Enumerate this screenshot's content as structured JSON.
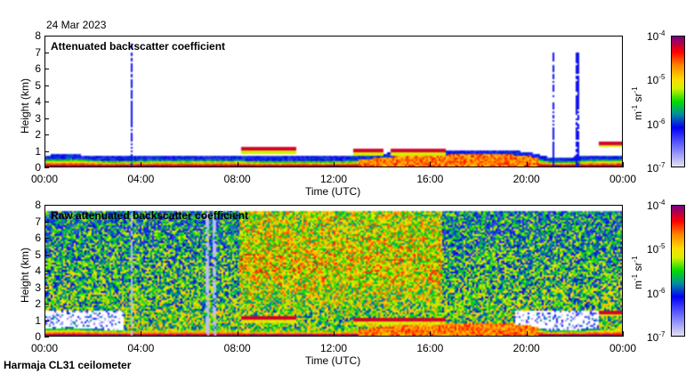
{
  "header": {
    "date": "24 Mar 2023"
  },
  "footer": {
    "station": "Harmaja CL31 ceilometer"
  },
  "chart_data": [
    {
      "type": "heatmap",
      "title": "Attenuated backscatter coefficient",
      "xlabel": "Time (UTC)",
      "ylabel": "Height (km)",
      "xlim": [
        0,
        24
      ],
      "ylim": [
        0,
        8
      ],
      "xticks": [
        "00:00",
        "04:00",
        "08:00",
        "12:00",
        "16:00",
        "20:00",
        "00:00"
      ],
      "yticks": [
        "0",
        "1",
        "2",
        "3",
        "4",
        "5",
        "6",
        "7",
        "8"
      ],
      "colorbar": {
        "label_base": "m",
        "label_exp1": "-1",
        "label_mid": " sr",
        "label_exp2": "-1",
        "scale": "log",
        "range": [
          1e-07,
          0.0001
        ],
        "ticks": [
          {
            "base": "10",
            "exp": "-4"
          },
          {
            "base": "10",
            "exp": "-5"
          },
          {
            "base": "10",
            "exp": "-6"
          },
          {
            "base": "10",
            "exp": "-7"
          }
        ]
      },
      "layer_top_km_hourly": [
        0.4,
        0.45,
        0.35,
        0.3,
        0.35,
        0.35,
        0.35,
        0.35,
        0.35,
        0.3,
        0.3,
        0.3,
        0.3,
        0.35,
        0.5,
        0.6,
        0.55,
        0.7,
        0.7,
        0.7,
        0.6,
        0.25,
        0.3,
        0.4,
        0.4
      ],
      "clouds": [
        {
          "t0": 8.1,
          "t1": 10.4,
          "h": 1.0
        },
        {
          "t0": 23.0,
          "t1": 24.0,
          "h": 1.4
        },
        {
          "t0": 12.8,
          "t1": 14.0,
          "h": 0.9
        },
        {
          "t0": 14.3,
          "t1": 16.6,
          "h": 0.9
        }
      ],
      "precip_columns": [
        {
          "t": 3.55,
          "top": 7.5
        },
        {
          "t": 21.1,
          "top": 7.0
        },
        {
          "t": 22.1,
          "top": 7.0
        }
      ],
      "noise": false
    },
    {
      "type": "heatmap",
      "title": "Raw attenuated backscatter coefficient",
      "xlabel": "Time (UTC)",
      "ylabel": "Height (km)",
      "xlim": [
        0,
        24
      ],
      "ylim": [
        0,
        8
      ],
      "xticks": [
        "00:00",
        "04:00",
        "08:00",
        "12:00",
        "16:00",
        "20:00",
        "00:00"
      ],
      "yticks": [
        "0",
        "1",
        "2",
        "3",
        "4",
        "5",
        "6",
        "7",
        "8"
      ],
      "colorbar": {
        "label_base": "m",
        "label_exp1": "-1",
        "label_mid": " sr",
        "label_exp2": "-1",
        "scale": "log",
        "range": [
          1e-07,
          0.0001
        ],
        "ticks": [
          {
            "base": "10",
            "exp": "-4"
          },
          {
            "base": "10",
            "exp": "-5"
          },
          {
            "base": "10",
            "exp": "-6"
          },
          {
            "base": "10",
            "exp": "-7"
          }
        ]
      },
      "layer_top_km_hourly": [
        0.4,
        0.45,
        0.35,
        0.3,
        0.35,
        0.35,
        0.35,
        0.35,
        0.35,
        0.3,
        0.3,
        0.3,
        0.3,
        0.35,
        0.5,
        0.6,
        0.55,
        0.7,
        0.7,
        0.7,
        0.6,
        0.25,
        0.3,
        0.4,
        0.4
      ],
      "clouds": [
        {
          "t0": 8.1,
          "t1": 10.4,
          "h": 1.0
        },
        {
          "t0": 23.0,
          "t1": 24.0,
          "h": 1.4
        },
        {
          "t0": 12.8,
          "t1": 16.6,
          "h": 0.9
        }
      ],
      "precip_columns": [
        {
          "t": 3.55,
          "top": 7.5
        },
        {
          "t": 6.7,
          "top": 7.5
        },
        {
          "t": 7.0,
          "top": 7.5
        }
      ],
      "noise": true
    }
  ]
}
